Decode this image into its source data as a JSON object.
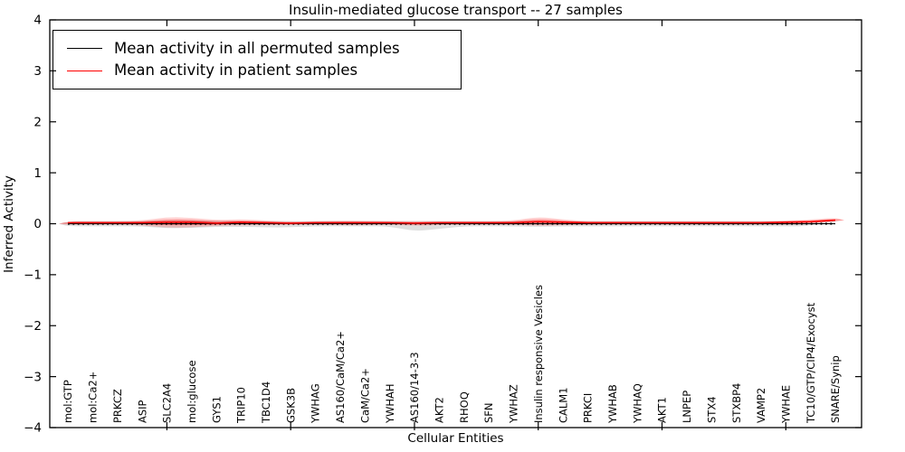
{
  "figure": {
    "title": "Insulin-mediated glucose transport -- 27 samples",
    "xlabel": "Cellular Entities",
    "ylabel": "Inferred Activity"
  },
  "legend": {
    "items": [
      {
        "label": "Mean activity in all permuted samples",
        "color": "#000000"
      },
      {
        "label": "Mean activity in patient samples",
        "color": "#ff0000"
      }
    ]
  },
  "colors": {
    "permuted_line": "#000000",
    "patient_line": "#ff0000",
    "permuted_band": "rgba(0,0,0,0.13)",
    "patient_band_outer": "rgba(255,0,0,0.18)",
    "patient_band_inner": "rgba(255,0,0,0.30)",
    "axis": "#000000"
  },
  "chart_data": {
    "type": "line",
    "title": "Insulin-mediated glucose transport -- 27 samples",
    "xlabel": "Cellular Entities",
    "ylabel": "Inferred Activity",
    "ylim": [
      -4,
      4
    ],
    "yticks": [
      -4,
      -3,
      -2,
      -1,
      0,
      1,
      2,
      3,
      4
    ],
    "x_numeric_ticks": [
      5,
      10,
      15,
      20,
      25,
      30
    ],
    "grid": false,
    "legend_position": "upper left",
    "categories": [
      "mol:GTP",
      "mol:Ca2+",
      "PRKCZ",
      "ASIP",
      "SLC2A4",
      "mol:glucose",
      "GYS1",
      "TRIP10",
      "TBC1D4",
      "GSK3B",
      "YWHAG",
      "AS160/CaM/Ca2+",
      "CaM/Ca2+",
      "YWHAH",
      "AS160/14-3-3",
      "AKT2",
      "RHOQ",
      "SFN",
      "YWHAZ",
      "Insulin responsive Vesicles",
      "CALM1",
      "PRKCI",
      "YWHAB",
      "YWHAQ",
      "AKT1",
      "LNPEP",
      "STX4",
      "STXBP4",
      "VAMP2",
      "YWHAE",
      "TC10/GTP/CIP4/Exocyst",
      "SNARE/Synip"
    ],
    "series": [
      {
        "name": "Mean activity in all permuted samples",
        "style": "dotted",
        "values": [
          0,
          0,
          0,
          0,
          0,
          0,
          0,
          0,
          0,
          0,
          0,
          0,
          0,
          0,
          0,
          0,
          0,
          0,
          0,
          0,
          0,
          0,
          0,
          0,
          0,
          0,
          0,
          0,
          0,
          0,
          0,
          0
        ]
      },
      {
        "name": "Mean activity in patient samples",
        "style": "solid",
        "values": [
          0.02,
          0.02,
          0.02,
          0.02,
          0.03,
          0.03,
          0.01,
          0.03,
          0.02,
          0.01,
          0.02,
          0.02,
          0.02,
          0.02,
          0.01,
          0.02,
          0.02,
          0.02,
          0.02,
          0.04,
          0.03,
          0.02,
          0.02,
          0.02,
          0.02,
          0.02,
          0.02,
          0.02,
          0.02,
          0.03,
          0.04,
          0.07
        ]
      }
    ],
    "bands": [
      {
        "name": "permuted-range",
        "upper": [
          0.05,
          0.05,
          0.05,
          0.05,
          0.07,
          0.07,
          0.06,
          0.05,
          0.05,
          0.05,
          0.05,
          0.05,
          0.05,
          0.05,
          0.05,
          0.05,
          0.05,
          0.05,
          0.05,
          0.06,
          0.05,
          0.05,
          0.05,
          0.05,
          0.05,
          0.05,
          0.05,
          0.05,
          0.05,
          0.05,
          0.05,
          0.05
        ],
        "lower": [
          -0.05,
          -0.05,
          -0.05,
          -0.05,
          -0.09,
          -0.08,
          -0.06,
          -0.06,
          -0.07,
          -0.07,
          -0.05,
          -0.05,
          -0.05,
          -0.05,
          -0.15,
          -0.1,
          -0.05,
          -0.05,
          -0.05,
          -0.06,
          -0.05,
          -0.05,
          -0.05,
          -0.05,
          -0.05,
          -0.05,
          -0.05,
          -0.05,
          -0.05,
          -0.05,
          -0.05,
          -0.05
        ]
      },
      {
        "name": "patient-range-outer",
        "upper": [
          0.05,
          0.05,
          0.05,
          0.06,
          0.13,
          0.12,
          0.07,
          0.09,
          0.06,
          0.04,
          0.05,
          0.06,
          0.06,
          0.05,
          0.05,
          0.05,
          0.05,
          0.05,
          0.06,
          0.14,
          0.08,
          0.05,
          0.05,
          0.05,
          0.05,
          0.05,
          0.05,
          0.05,
          0.05,
          0.06,
          0.08,
          0.12
        ],
        "lower": [
          -0.02,
          -0.02,
          -0.02,
          -0.03,
          -0.08,
          -0.07,
          -0.04,
          -0.03,
          -0.03,
          -0.02,
          -0.02,
          -0.03,
          -0.03,
          -0.02,
          -0.04,
          -0.03,
          -0.02,
          -0.02,
          -0.02,
          -0.04,
          -0.03,
          -0.02,
          -0.02,
          -0.02,
          -0.02,
          -0.02,
          -0.02,
          -0.02,
          -0.02,
          -0.02,
          -0.01,
          0.02
        ]
      },
      {
        "name": "patient-range-inner",
        "upper": [
          0.037,
          0.037,
          0.037,
          0.042,
          0.085,
          0.08,
          0.043,
          0.063,
          0.042,
          0.027,
          0.037,
          0.042,
          0.042,
          0.037,
          0.032,
          0.037,
          0.037,
          0.037,
          0.042,
          0.095,
          0.058,
          0.037,
          0.037,
          0.037,
          0.037,
          0.037,
          0.037,
          0.037,
          0.037,
          0.047,
          0.062,
          0.098
        ],
        "lower": [
          -0.002,
          -0.002,
          -0.002,
          -0.008,
          -0.031,
          -0.025,
          -0.018,
          -0.003,
          -0.008,
          -0.007,
          -0.002,
          -0.008,
          -0.008,
          -0.002,
          -0.018,
          -0.008,
          -0.002,
          -0.002,
          -0.002,
          -0.004,
          -0.003,
          -0.002,
          -0.002,
          -0.002,
          -0.002,
          -0.002,
          -0.002,
          -0.002,
          -0.002,
          0.003,
          0.013,
          0.043
        ]
      }
    ]
  }
}
